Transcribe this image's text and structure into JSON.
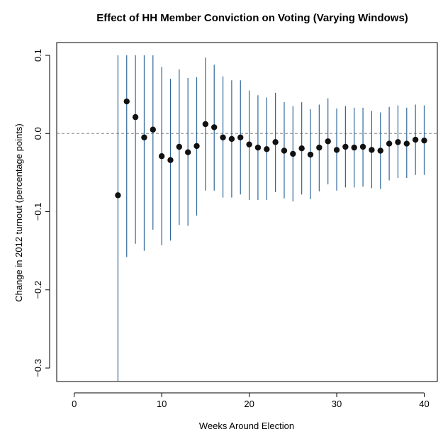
{
  "chart_data": {
    "type": "scatter",
    "title": "Effect of HH Member Conviction on Voting (Varying Windows)",
    "xlabel": "Weeks Around Election",
    "ylabel": "Change in 2012 turnout (percentage points)",
    "xlim": [
      -2,
      41.5
    ],
    "ylim": [
      -0.32,
      0.1
    ],
    "xticks": [
      0,
      10,
      20,
      30,
      40
    ],
    "yticks": [
      -0.3,
      -0.2,
      -0.1,
      0.0,
      0.1
    ],
    "xtick_labels": [
      "0",
      "10",
      "20",
      "30",
      "40"
    ],
    "ytick_labels": [
      "−0.3",
      "−0.2",
      "−0.1",
      "0.0",
      "0.1"
    ],
    "reference_line": 0.0,
    "grid": false,
    "colors": {
      "point": "#111111",
      "error_bar": "#2f6699",
      "reference_line": "#999999",
      "axis": "#000000"
    },
    "series": [
      {
        "x": [
          5,
          6,
          7,
          8,
          9,
          10,
          11,
          12,
          13,
          14,
          15,
          16,
          17,
          18,
          19,
          20,
          21,
          22,
          23,
          24,
          25,
          26,
          27,
          28,
          29,
          30,
          31,
          32,
          33,
          34,
          35,
          36,
          37,
          38,
          39,
          40
        ],
        "y": [
          -0.079,
          0.041,
          0.021,
          -0.005,
          0.005,
          -0.029,
          -0.034,
          -0.017,
          -0.024,
          -0.016,
          0.012,
          0.008,
          -0.005,
          -0.007,
          -0.005,
          -0.014,
          -0.018,
          -0.02,
          -0.011,
          -0.022,
          -0.026,
          -0.019,
          -0.027,
          -0.018,
          -0.01,
          -0.021,
          -0.017,
          -0.018,
          -0.017,
          -0.021,
          -0.022,
          -0.013,
          -0.011,
          -0.013,
          -0.008,
          -0.009
        ],
        "lower": [
          -0.32,
          -0.158,
          -0.141,
          -0.15,
          -0.123,
          -0.143,
          -0.137,
          -0.117,
          -0.118,
          -0.105,
          -0.073,
          -0.073,
          -0.082,
          -0.082,
          -0.078,
          -0.085,
          -0.085,
          -0.085,
          -0.075,
          -0.083,
          -0.087,
          -0.078,
          -0.084,
          -0.074,
          -0.065,
          -0.073,
          -0.069,
          -0.069,
          -0.068,
          -0.07,
          -0.071,
          -0.06,
          -0.057,
          -0.057,
          -0.053,
          -0.053
        ],
        "upper": [
          0.1,
          0.1,
          0.1,
          0.1,
          0.1,
          0.085,
          0.07,
          0.082,
          0.071,
          0.072,
          0.097,
          0.088,
          0.073,
          0.068,
          0.068,
          0.055,
          0.049,
          0.046,
          0.052,
          0.04,
          0.035,
          0.04,
          0.031,
          0.037,
          0.045,
          0.032,
          0.035,
          0.033,
          0.033,
          0.029,
          0.027,
          0.034,
          0.036,
          0.033,
          0.037,
          0.036
        ]
      }
    ]
  }
}
